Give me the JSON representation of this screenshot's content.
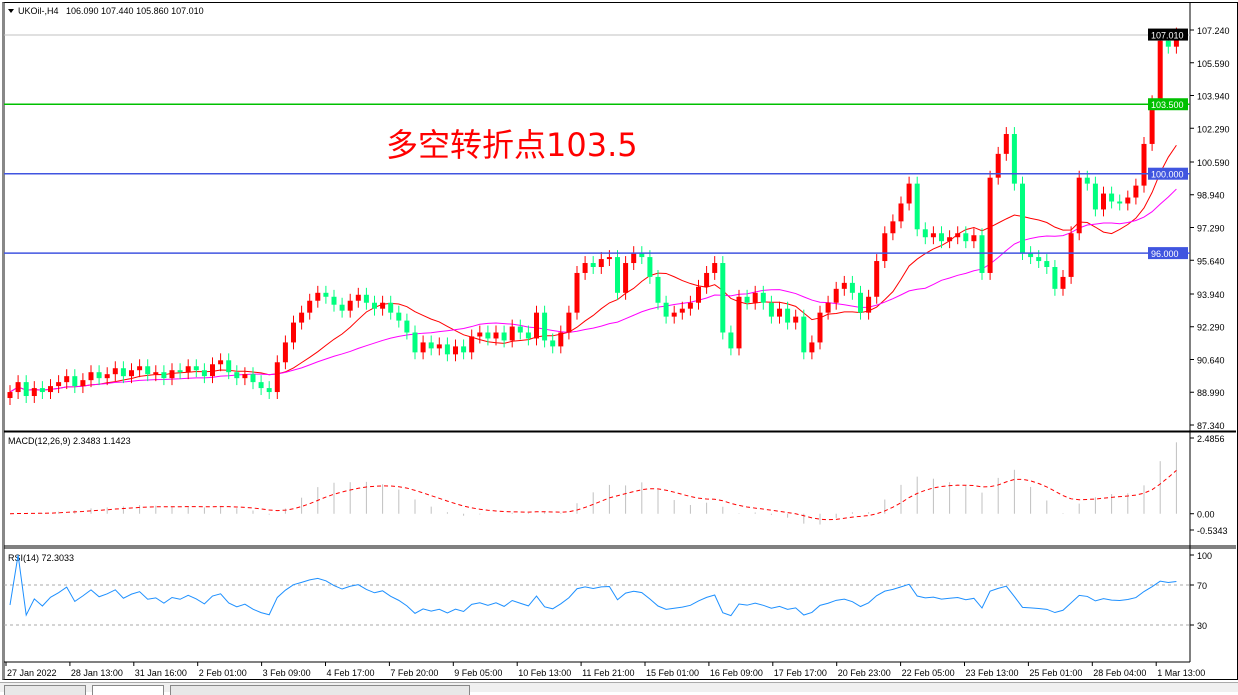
{
  "header": {
    "symbol_label": "UKOil-,H4",
    "ohlc": "106.090 107.440 105.860 107.010"
  },
  "annotation": "多空转折点103.5",
  "colors": {
    "bull": "#ff0000",
    "bear": "#00ff7f",
    "ma_fast": "#ff0000",
    "ma_slow": "#ff00ff",
    "level_blue": "#4055e0",
    "level_green": "#00c000",
    "rsi": "#1e90ff",
    "macd_hist": "#c0c0c0",
    "macd_signal": "#ff0000"
  },
  "chart_data": {
    "type": "candlestick",
    "ylim": [
      87.34,
      107.24
    ],
    "price_ticks": [
      "107.240",
      "105.590",
      "103.940",
      "102.290",
      "100.590",
      "98.940",
      "97.290",
      "95.640",
      "93.940",
      "92.290",
      "90.640",
      "88.990",
      "87.340"
    ],
    "current_price": "107.010",
    "levels": [
      {
        "value": 103.5,
        "label": "103.500",
        "color": "green"
      },
      {
        "value": 100.0,
        "label": "100.000",
        "color": "blue"
      },
      {
        "value": 96.0,
        "label": "96.000",
        "color": "blue"
      }
    ],
    "closes": [
      89.0,
      89.5,
      88.8,
      89.2,
      89.0,
      89.3,
      89.5,
      89.8,
      89.3,
      89.6,
      90.0,
      89.7,
      89.9,
      90.2,
      89.8,
      90.1,
      90.3,
      89.9,
      90.0,
      89.7,
      90.1,
      90.0,
      90.3,
      90.1,
      89.8,
      90.4,
      90.6,
      90.0,
      89.7,
      89.9,
      89.5,
      89.2,
      89.0,
      90.5,
      91.5,
      92.5,
      93.0,
      93.6,
      94.0,
      93.8,
      93.4,
      93.1,
      93.6,
      93.9,
      93.5,
      93.2,
      93.5,
      93.0,
      92.6,
      92.0,
      91.0,
      91.5,
      91.2,
      91.4,
      90.9,
      91.3,
      91.0,
      91.8,
      92.0,
      91.7,
      92.0,
      91.6,
      92.3,
      92.0,
      91.7,
      93.0,
      91.6,
      91.3,
      92.0,
      93.0,
      95.0,
      95.5,
      95.3,
      95.7,
      95.8,
      94.0,
      95.5,
      96.0,
      95.8,
      94.8,
      93.5,
      92.8,
      93.0,
      93.2,
      93.5,
      94.3,
      95.0,
      95.5,
      92.0,
      91.2,
      93.8,
      93.5,
      94.0,
      93.5,
      92.8,
      93.2,
      92.5,
      92.8,
      91.0,
      91.5,
      93.0,
      93.5,
      94.2,
      94.5,
      94.0,
      93.0,
      93.8,
      95.6,
      97.0,
      97.6,
      98.5,
      99.5,
      97.2,
      96.8,
      97.0,
      96.6,
      96.8,
      97.0,
      96.6,
      96.9,
      95.0,
      99.8,
      101.0,
      102.0,
      99.5,
      96.0,
      95.8,
      95.6,
      95.3,
      94.2,
      94.8,
      97.0,
      99.8,
      99.5,
      98.2,
      99.0,
      98.6,
      98.5,
      98.8,
      99.4,
      101.5,
      103.6,
      106.7,
      106.4,
      107.01
    ],
    "macd": {
      "label": "MACD(12,26,9) 2.3483 1.1423",
      "ticks": [
        "2.4856",
        "0.00",
        "-0.5343"
      ],
      "ylim": [
        -0.5343,
        2.4856
      ]
    },
    "rsi": {
      "label": "RSI(14) 72.3033",
      "ticks": [
        "100",
        "70",
        "30",
        "0"
      ],
      "ylim": [
        0,
        100
      ]
    },
    "time_labels": [
      "27 Jan 2022",
      "28 Jan 13:00",
      "31 Jan 16:00",
      "2 Feb 01:00",
      "3 Feb 09:00",
      "4 Feb 17:00",
      "7 Feb 20:00",
      "9 Feb 05:00",
      "10 Feb 13:00",
      "11 Feb 21:00",
      "15 Feb 01:00",
      "16 Feb 09:00",
      "17 Feb 17:00",
      "20 Feb 23:00",
      "22 Feb 05:00",
      "23 Feb 13:00",
      "25 Feb 01:00",
      "28 Feb 04:00",
      "1 Mar 13:00"
    ]
  }
}
